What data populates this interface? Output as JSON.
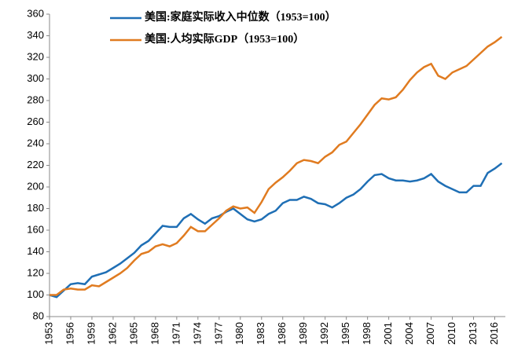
{
  "chart_data": {
    "type": "line",
    "x": [
      1953,
      1954,
      1955,
      1956,
      1957,
      1958,
      1959,
      1960,
      1961,
      1962,
      1963,
      1964,
      1965,
      1966,
      1967,
      1968,
      1969,
      1970,
      1971,
      1972,
      1973,
      1974,
      1975,
      1976,
      1977,
      1978,
      1979,
      1980,
      1981,
      1982,
      1983,
      1984,
      1985,
      1986,
      1987,
      1988,
      1989,
      1990,
      1991,
      1992,
      1993,
      1994,
      1995,
      1996,
      1997,
      1998,
      1999,
      2000,
      2001,
      2002,
      2003,
      2004,
      2005,
      2006,
      2007,
      2008,
      2009,
      2010,
      2011,
      2012,
      2013,
      2014,
      2015,
      2016,
      2017
    ],
    "series": [
      {
        "name": "美国:家庭实际收入中位数（1953=100）",
        "color": "#1f6fb5",
        "values": [
          100,
          98,
          104,
          110,
          111,
          110,
          117,
          119,
          121,
          125,
          129,
          134,
          139,
          146,
          150,
          157,
          164,
          163,
          163,
          171,
          175,
          170,
          166,
          171,
          173,
          177,
          180,
          175,
          170,
          168,
          170,
          175,
          178,
          185,
          188,
          188,
          191,
          189,
          185,
          184,
          181,
          185,
          190,
          193,
          198,
          205,
          211,
          212,
          208,
          206,
          206,
          205,
          206,
          208,
          212,
          205,
          201,
          198,
          195,
          195,
          201,
          201,
          213,
          217,
          222
        ]
      },
      {
        "name": "美国:人均实际GDP（1953=100）",
        "color": "#e07b20",
        "values": [
          100,
          100,
          105,
          106,
          105,
          105,
          109,
          108,
          112,
          116,
          120,
          125,
          132,
          138,
          140,
          145,
          147,
          145,
          148,
          155,
          163,
          159,
          159,
          165,
          171,
          178,
          182,
          180,
          181,
          176,
          186,
          198,
          204,
          209,
          215,
          222,
          225,
          224,
          222,
          228,
          232,
          239,
          242,
          250,
          258,
          267,
          276,
          282,
          281,
          283,
          290,
          299,
          306,
          311,
          314,
          303,
          300,
          306,
          309,
          312,
          318,
          324,
          330,
          334,
          339
        ]
      }
    ],
    "xlim": [
      1953,
      2017.5
    ],
    "xticks": [
      1953,
      1956,
      1959,
      1962,
      1965,
      1968,
      1971,
      1974,
      1977,
      1980,
      1983,
      1986,
      1989,
      1992,
      1995,
      1998,
      2001,
      2004,
      2007,
      2010,
      2013,
      2016
    ],
    "ylim": [
      80,
      360
    ],
    "yticks": [
      80,
      100,
      120,
      140,
      160,
      180,
      200,
      220,
      240,
      260,
      280,
      300,
      320,
      340,
      360
    ],
    "grid": false,
    "legend": "upper-left"
  }
}
